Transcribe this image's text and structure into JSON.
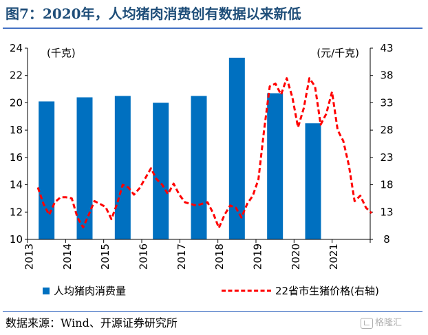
{
  "figure": {
    "title": "图7：2020年，人均猪肉消费创有数据以来新低",
    "source": "数据来源：Wind、开源证券研究所",
    "watermark": "格隆汇"
  },
  "colors": {
    "bar": "#0070c0",
    "line": "#ff0000",
    "title": "#1f4e79",
    "rule": "#4472c4"
  },
  "chart_data": {
    "type": "bar",
    "categories": [
      "2013",
      "2014",
      "2015",
      "2016",
      "2017",
      "2018",
      "2019",
      "2020",
      "2021"
    ],
    "series": [
      {
        "name": "人均猪肉消费量",
        "type": "bar",
        "axis": "left",
        "values": [
          20.1,
          20.4,
          20.5,
          20.0,
          20.5,
          23.3,
          20.7,
          18.5,
          null
        ]
      }
    ],
    "line_series": {
      "name": "22省市生猪价格(右轴)",
      "type": "line",
      "style": "dashed",
      "axis": "right",
      "values": [
        17.5,
        14.5,
        12.5,
        14.8,
        15.7,
        15.7,
        15.5,
        12.0,
        10.2,
        12.5,
        15.0,
        14.5,
        13.9,
        11.7,
        14.5,
        18.0,
        17.5,
        16.2,
        17.4,
        19.2,
        21.0,
        19.0,
        18.0,
        16.3,
        18.2,
        16.2,
        14.8,
        14.5,
        14.2,
        14.5,
        14.8,
        12.8,
        10.1,
        12.5,
        14.2,
        13.8,
        12.0,
        14.5,
        16.0,
        19.0,
        28.0,
        36.0,
        36.5,
        34.5,
        37.5,
        34.0,
        28.5,
        32.0,
        37.5,
        36.0,
        29.0,
        31.0,
        35.0,
        28.0,
        26.0,
        21.5,
        15.0,
        16.0,
        13.8,
        12.8
      ]
    },
    "y_left": {
      "label": "(千克)",
      "ticks": [
        "10",
        "12",
        "14",
        "16",
        "18",
        "20",
        "22",
        "24"
      ],
      "range": [
        10,
        24
      ]
    },
    "y_right": {
      "label": "(元/千克)",
      "ticks": [
        "8",
        "13",
        "18",
        "23",
        "28",
        "33",
        "38",
        "43"
      ],
      "range": [
        8,
        43
      ]
    },
    "x_ticks": [
      "2013",
      "2014",
      "2015",
      "2016",
      "2017",
      "2018",
      "2019",
      "2020",
      "2021"
    ],
    "grid": false,
    "legend": {
      "position": "bottom",
      "bar_label": "人均猪肉消费量",
      "line_label": "22省市生猪价格(右轴)"
    }
  }
}
